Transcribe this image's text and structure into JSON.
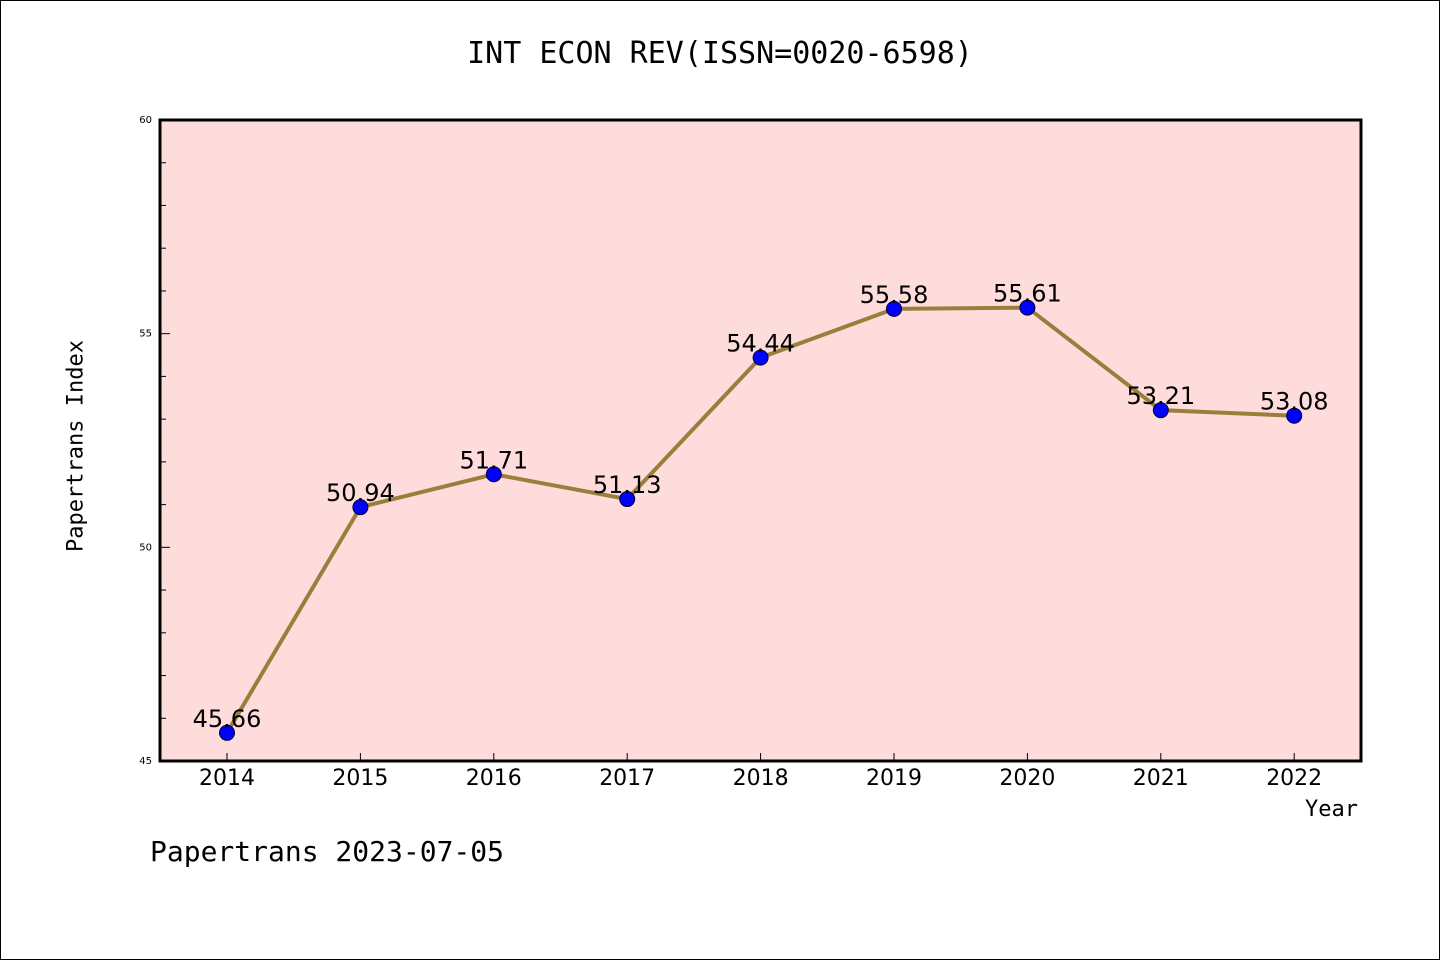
{
  "chart_data": {
    "type": "line",
    "title": "INT ECON REV(ISSN=0020-6598)",
    "xlabel": "Year",
    "ylabel": "Papertrans Index",
    "x": [
      "2014",
      "2015",
      "2016",
      "2017",
      "2018",
      "2019",
      "2020",
      "2021",
      "2022"
    ],
    "series": [
      {
        "values": [
          45.66,
          50.94,
          51.71,
          51.13,
          54.44,
          55.58,
          55.61,
          53.21,
          53.08
        ],
        "labels": [
          "45.66",
          "50.94",
          "51.71",
          "51.13",
          "54.44",
          "55.58",
          "55.61",
          "53.21",
          "53.08"
        ]
      }
    ],
    "ylim": [
      45,
      60
    ],
    "yticks": [
      "45",
      "50",
      "55",
      "60"
    ],
    "grid": false,
    "plot_background": "#ffdcdc",
    "line_color": "#9a7e3c",
    "marker_color": "#0000ff"
  },
  "footer": "Papertrans 2023-07-05"
}
